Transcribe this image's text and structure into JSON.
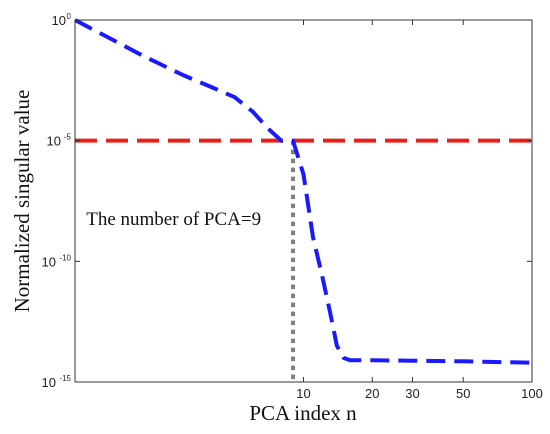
{
  "chart_data": {
    "type": "line",
    "xlabel": "PCA index n",
    "ylabel": "Normalized singular value",
    "x_scale": "log",
    "y_scale": "log",
    "xlim": [
      1,
      100
    ],
    "ylim": [
      1e-15,
      1
    ],
    "grid": false,
    "x_ticks": [
      "10",
      "20",
      "30",
      "50",
      "100"
    ],
    "x_tick_values": [
      10,
      20,
      30,
      50,
      100
    ],
    "y_ticks": [
      {
        "value": 1,
        "base": "10",
        "exp": "0"
      },
      {
        "value": 1e-05,
        "base": "10",
        "exp": "-5"
      },
      {
        "value": 1e-10,
        "base": "10",
        "exp": "-10"
      },
      {
        "value": 1e-15,
        "base": "10",
        "exp": "-15"
      }
    ],
    "series": [
      {
        "color": "#1a1aff",
        "style": "dashed",
        "x": [
          1,
          2,
          3,
          4,
          5,
          6,
          7,
          8,
          9,
          10,
          11,
          12,
          13,
          14,
          15,
          16,
          20,
          30,
          50,
          100
        ],
        "y": [
          1,
          0.0316,
          0.005,
          0.00158,
          0.000631,
          0.000158,
          3.16e-05,
          1e-05,
          1e-05,
          4e-07,
          1e-09,
          3.16e-11,
          1e-12,
          3.16e-14,
          1e-14,
          7.9e-15,
          7.9e-15,
          7.6e-15,
          7.2e-15,
          6.3e-15
        ]
      }
    ],
    "threshold": {
      "y": 1e-05,
      "color": "#e8201a",
      "style": "dashed"
    },
    "marker_line": {
      "x": 9,
      "color": "#808080",
      "style": "dotted"
    },
    "annotations": [
      {
        "text": "The number of PCA=9",
        "x": 1.12,
        "y": 3.2e-09
      }
    ]
  }
}
